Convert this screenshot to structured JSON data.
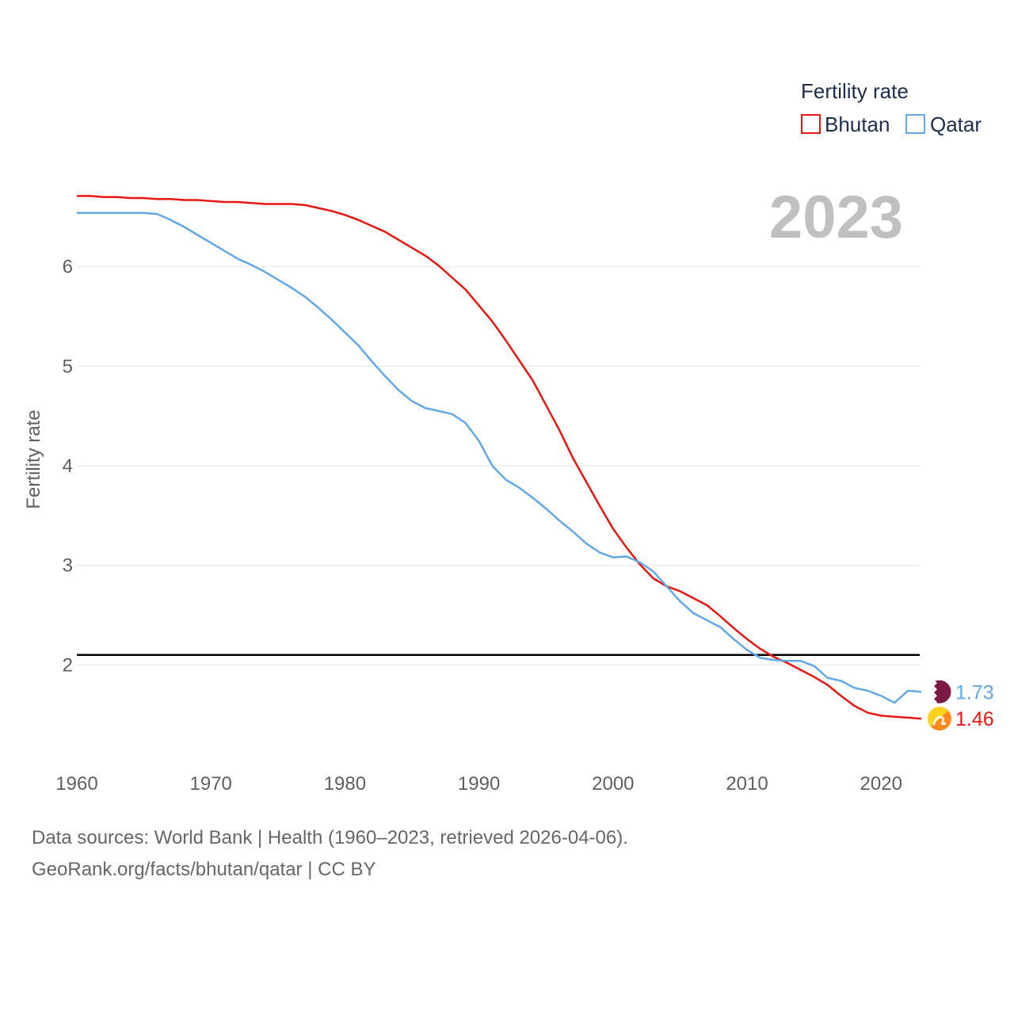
{
  "chart_data": {
    "type": "line",
    "title": "",
    "year_label": "2023",
    "ylabel": "Fertility rate",
    "xlabel": "",
    "xlim": [
      1960,
      2023
    ],
    "ylim": [
      1.0,
      7.0
    ],
    "x_ticks": [
      1960,
      1970,
      1980,
      1990,
      2000,
      2010,
      2020
    ],
    "y_ticks": [
      2,
      3,
      4,
      5,
      6
    ],
    "grid": true,
    "reference_line": {
      "y": 2.1
    },
    "legend": {
      "title": "Fertility rate",
      "placement": "top-right",
      "entries": [
        {
          "name": "Bhutan",
          "color": "#e8170f"
        },
        {
          "name": "Qatar",
          "color": "#62a8e6"
        }
      ]
    },
    "x": [
      1960,
      1961,
      1962,
      1963,
      1964,
      1965,
      1966,
      1967,
      1968,
      1969,
      1970,
      1971,
      1972,
      1973,
      1974,
      1975,
      1976,
      1977,
      1978,
      1979,
      1980,
      1981,
      1982,
      1983,
      1984,
      1985,
      1986,
      1987,
      1988,
      1989,
      1990,
      1991,
      1992,
      1993,
      1994,
      1995,
      1996,
      1997,
      1998,
      1999,
      2000,
      2001,
      2002,
      2003,
      2004,
      2005,
      2006,
      2007,
      2008,
      2009,
      2010,
      2011,
      2012,
      2013,
      2014,
      2015,
      2016,
      2017,
      2018,
      2019,
      2020,
      2021,
      2022,
      2023
    ],
    "series": [
      {
        "name": "Bhutan",
        "color": "#e8170f",
        "end_label": "1.46",
        "end_icon": "bhutan-flag-icon",
        "values": [
          6.71,
          6.71,
          6.7,
          6.7,
          6.69,
          6.69,
          6.68,
          6.68,
          6.67,
          6.67,
          6.66,
          6.65,
          6.65,
          6.64,
          6.63,
          6.63,
          6.63,
          6.62,
          6.59,
          6.56,
          6.52,
          6.47,
          6.41,
          6.35,
          6.27,
          6.19,
          6.11,
          6.01,
          5.89,
          5.77,
          5.61,
          5.45,
          5.26,
          5.06,
          4.86,
          4.61,
          4.36,
          4.08,
          3.84,
          3.6,
          3.37,
          3.18,
          3.01,
          2.87,
          2.79,
          2.74,
          2.67,
          2.6,
          2.49,
          2.37,
          2.26,
          2.16,
          2.08,
          2.02,
          1.95,
          1.88,
          1.8,
          1.69,
          1.59,
          1.52,
          1.49,
          1.48,
          1.47,
          1.46
        ]
      },
      {
        "name": "Qatar",
        "color": "#62a8e6",
        "end_label": "1.73",
        "end_icon": "qatar-flag-icon",
        "values": [
          6.54,
          6.54,
          6.54,
          6.54,
          6.54,
          6.54,
          6.53,
          6.47,
          6.4,
          6.32,
          6.24,
          6.16,
          6.08,
          6.02,
          5.95,
          5.87,
          5.79,
          5.7,
          5.59,
          5.47,
          5.34,
          5.21,
          5.05,
          4.9,
          4.76,
          4.65,
          4.58,
          4.55,
          4.52,
          4.43,
          4.25,
          4.0,
          3.86,
          3.78,
          3.68,
          3.57,
          3.45,
          3.34,
          3.22,
          3.13,
          3.08,
          3.09,
          3.03,
          2.94,
          2.79,
          2.64,
          2.52,
          2.45,
          2.38,
          2.26,
          2.15,
          2.07,
          2.05,
          2.04,
          2.04,
          1.99,
          1.87,
          1.84,
          1.77,
          1.74,
          1.69,
          1.62,
          1.74,
          1.73
        ]
      }
    ]
  },
  "footer": {
    "sources": "Data sources: World Bank | Health (1960–2023, retrieved 2026-04-06).",
    "credit": "GeoRank.org/facts/bhutan/qatar | CC BY"
  }
}
